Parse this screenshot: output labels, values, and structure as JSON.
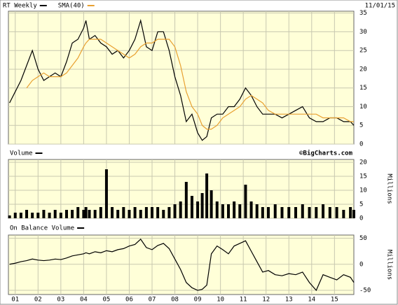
{
  "chart_data": [
    {
      "type": "line",
      "title": "RT Weekly",
      "date": "11/01/15",
      "x": [
        2000.75,
        2001,
        2001.25,
        2001.5,
        2001.75,
        2002,
        2002.25,
        2002.5,
        2002.75,
        2003,
        2003.25,
        2003.5,
        2003.75,
        2004,
        2004.1,
        2004.25,
        2004.5,
        2004.75,
        2005,
        2005.25,
        2005.5,
        2005.75,
        2006,
        2006.25,
        2006.5,
        2006.75,
        2007,
        2007.25,
        2007.5,
        2007.75,
        2008,
        2008.25,
        2008.5,
        2008.75,
        2009,
        2009.2,
        2009.4,
        2009.6,
        2009.85,
        2010.1,
        2010.35,
        2010.6,
        2010.85,
        2011.1,
        2011.35,
        2011.6,
        2011.85,
        2012.1,
        2012.4,
        2012.7,
        2013,
        2013.3,
        2013.6,
        2013.9,
        2014.2,
        2014.5,
        2014.8,
        2015.1,
        2015.4,
        2015.7,
        2015.85
      ],
      "series": [
        {
          "name": "RT Weekly",
          "color": "#000000",
          "values": [
            11,
            14,
            17,
            21,
            25,
            20,
            17,
            18,
            19,
            18,
            22,
            27,
            28,
            31,
            33,
            28,
            29,
            27,
            26,
            24,
            25,
            23,
            25,
            28,
            33,
            26,
            25,
            30,
            30,
            25,
            18,
            13,
            6,
            8,
            3,
            1,
            2,
            7,
            8,
            8,
            10,
            10,
            12,
            15,
            13,
            10,
            8,
            8,
            8,
            7,
            8,
            9,
            10,
            7,
            6,
            6,
            7,
            7,
            6,
            6,
            5
          ]
        },
        {
          "name": "SMA(40)",
          "color": "#e8a030",
          "values": [
            null,
            null,
            null,
            15,
            17,
            18,
            19,
            18,
            18,
            18,
            19,
            21,
            23,
            26,
            27,
            28,
            28,
            28,
            27,
            26,
            25,
            24,
            23,
            24,
            26,
            27,
            27,
            28,
            28,
            28,
            26,
            21,
            14,
            10,
            8,
            5,
            4,
            4,
            5,
            7,
            8,
            9,
            10,
            12,
            13,
            12,
            11,
            9,
            8,
            8,
            8,
            8,
            8,
            8,
            8,
            7,
            7,
            7,
            7,
            6,
            6
          ]
        }
      ],
      "xlim": [
        2000.7,
        2015.85
      ],
      "ylim": [
        0,
        35.5
      ],
      "yticks": [
        0,
        5,
        10,
        15,
        20,
        25,
        30,
        35
      ]
    },
    {
      "type": "bar",
      "title": "Volume",
      "annotation": "©BigCharts.com",
      "y_label": "Millions",
      "color": "#000000",
      "x": [
        2000.75,
        2001,
        2001.25,
        2001.5,
        2001.75,
        2002,
        2002.25,
        2002.5,
        2002.75,
        2003,
        2003.25,
        2003.5,
        2003.75,
        2004,
        2004.1,
        2004.25,
        2004.5,
        2004.75,
        2005,
        2005.25,
        2005.5,
        2005.75,
        2006,
        2006.25,
        2006.5,
        2006.75,
        2007,
        2007.25,
        2007.5,
        2007.75,
        2008,
        2008.25,
        2008.5,
        2008.75,
        2009,
        2009.2,
        2009.4,
        2009.6,
        2009.85,
        2010.1,
        2010.35,
        2010.6,
        2010.85,
        2011.1,
        2011.35,
        2011.6,
        2011.85,
        2012.1,
        2012.4,
        2012.7,
        2013,
        2013.3,
        2013.6,
        2013.9,
        2014.2,
        2014.5,
        2014.8,
        2015.1,
        2015.4,
        2015.7,
        2015.85
      ],
      "values": [
        1,
        2,
        2,
        3,
        2,
        2,
        3,
        2,
        3,
        2,
        3,
        3,
        4,
        3,
        4,
        3,
        3,
        4,
        17.5,
        4,
        3,
        4,
        3,
        4,
        3,
        4,
        4,
        4,
        3,
        4,
        5,
        6,
        13,
        8,
        6,
        9,
        16,
        10,
        6,
        5,
        5,
        6,
        5,
        12,
        6,
        5,
        4,
        4,
        5,
        4,
        4,
        4,
        5,
        4,
        4,
        5,
        4,
        4,
        3,
        4,
        3
      ],
      "xlim": [
        2000.7,
        2015.85
      ],
      "ylim": [
        0,
        21
      ],
      "yticks": [
        0,
        5,
        10,
        15,
        20
      ]
    },
    {
      "type": "line",
      "title": "On Balance Volume",
      "y_label": "Millions",
      "x": [
        2000.75,
        2001,
        2001.25,
        2001.5,
        2001.75,
        2002,
        2002.25,
        2002.5,
        2002.75,
        2003,
        2003.25,
        2003.5,
        2003.75,
        2004,
        2004.1,
        2004.25,
        2004.5,
        2004.75,
        2005,
        2005.25,
        2005.5,
        2005.75,
        2006,
        2006.25,
        2006.5,
        2006.75,
        2007,
        2007.25,
        2007.5,
        2007.75,
        2008,
        2008.25,
        2008.5,
        2008.75,
        2009,
        2009.2,
        2009.4,
        2009.6,
        2009.85,
        2010.1,
        2010.35,
        2010.6,
        2010.85,
        2011.1,
        2011.35,
        2011.6,
        2011.85,
        2012.1,
        2012.4,
        2012.7,
        2013,
        2013.3,
        2013.6,
        2013.9,
        2014.2,
        2014.5,
        2014.8,
        2015.1,
        2015.4,
        2015.7,
        2015.85
      ],
      "series": [
        {
          "name": "On Balance Volume",
          "color": "#000000",
          "values": [
            0,
            2,
            5,
            7,
            10,
            8,
            7,
            8,
            10,
            9,
            12,
            16,
            18,
            20,
            22,
            20,
            24,
            22,
            26,
            24,
            28,
            30,
            35,
            38,
            48,
            32,
            28,
            36,
            40,
            30,
            10,
            -10,
            -35,
            -45,
            -50,
            -48,
            -40,
            20,
            35,
            28,
            20,
            35,
            40,
            45,
            25,
            5,
            -15,
            -12,
            -20,
            -22,
            -18,
            -20,
            -15,
            -35,
            -50,
            -20,
            -25,
            -30,
            -20,
            -25,
            -35
          ]
        }
      ],
      "xlim": [
        2000.7,
        2015.85
      ],
      "ylim": [
        -58,
        56
      ],
      "yticks": [
        -50,
        0,
        50
      ],
      "xticks": [
        {
          "value": 2001,
          "label": "01"
        },
        {
          "value": 2002,
          "label": "02"
        },
        {
          "value": 2003,
          "label": "03"
        },
        {
          "value": 2004,
          "label": "04"
        },
        {
          "value": 2005,
          "label": "05"
        },
        {
          "value": 2006,
          "label": "06"
        },
        {
          "value": 2007,
          "label": "07"
        },
        {
          "value": 2008,
          "label": "08"
        },
        {
          "value": 2009,
          "label": "09"
        },
        {
          "value": 2010,
          "label": "10"
        },
        {
          "value": 2011,
          "label": "11"
        },
        {
          "value": 2012,
          "label": "12"
        },
        {
          "value": 2013,
          "label": "13"
        },
        {
          "value": 2014,
          "label": "14"
        },
        {
          "value": 2015,
          "label": "15"
        }
      ]
    }
  ]
}
